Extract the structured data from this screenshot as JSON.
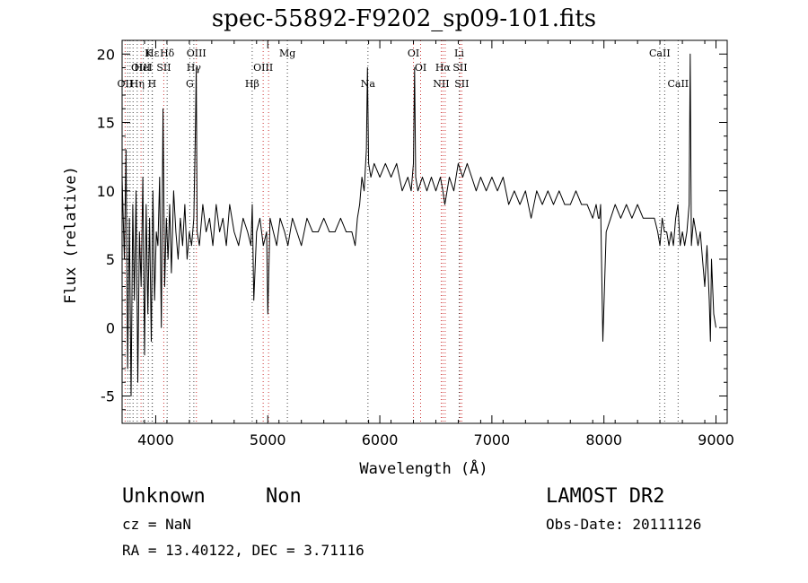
{
  "chart_data": {
    "type": "line",
    "title": "spec-55892-F9202_sp09-101.fits",
    "xlabel": "Wavelength (Å)",
    "ylabel": "Flux (relative)",
    "xlim": [
      3700,
      9100
    ],
    "ylim": [
      -7,
      21
    ],
    "xticks": [
      4000,
      5000,
      6000,
      7000,
      8000,
      9000
    ],
    "yticks": [
      -5,
      0,
      5,
      10,
      15,
      20
    ],
    "grid": false,
    "series": [
      {
        "color": "#000000",
        "x": [
          3700,
          3720,
          3735,
          3750,
          3765,
          3780,
          3795,
          3810,
          3825,
          3840,
          3855,
          3870,
          3885,
          3900,
          3915,
          3930,
          3945,
          3960,
          3975,
          3990,
          4005,
          4020,
          4035,
          4050,
          4065,
          4080,
          4095,
          4110,
          4125,
          4140,
          4160,
          4180,
          4200,
          4220,
          4240,
          4260,
          4280,
          4300,
          4320,
          4340,
          4355,
          4362,
          4370,
          4390,
          4420,
          4450,
          4480,
          4510,
          4540,
          4570,
          4600,
          4630,
          4660,
          4700,
          4740,
          4780,
          4820,
          4850,
          4862,
          4875,
          4900,
          4930,
          4960,
          4990,
          5000,
          5020,
          5050,
          5080,
          5110,
          5150,
          5180,
          5220,
          5260,
          5300,
          5350,
          5400,
          5450,
          5500,
          5550,
          5600,
          5650,
          5700,
          5750,
          5780,
          5800,
          5820,
          5840,
          5860,
          5880,
          5890,
          5900,
          5920,
          5950,
          6000,
          6050,
          6100,
          6150,
          6200,
          6250,
          6280,
          6300,
          6310,
          6320,
          6340,
          6380,
          6420,
          6460,
          6500,
          6540,
          6563,
          6580,
          6620,
          6660,
          6700,
          6740,
          6780,
          6820,
          6860,
          6900,
          6950,
          7000,
          7050,
          7100,
          7150,
          7200,
          7250,
          7300,
          7350,
          7400,
          7450,
          7500,
          7550,
          7600,
          7650,
          7700,
          7750,
          7800,
          7850,
          7900,
          7930,
          7950,
          7960,
          7970,
          7990,
          8020,
          8060,
          8100,
          8150,
          8200,
          8250,
          8300,
          8350,
          8400,
          8430,
          8450,
          8480,
          8500,
          8520,
          8540,
          8560,
          8580,
          8600,
          8620,
          8640,
          8660,
          8680,
          8700,
          8720,
          8740,
          8760,
          8770,
          8780,
          8800,
          8820,
          8840,
          8860,
          8880,
          8900,
          8920,
          8940,
          8950,
          8960,
          8980,
          9000
        ],
        "y": [
          11,
          5,
          13,
          -3,
          8,
          -5,
          9,
          2,
          10,
          -4,
          7,
          3,
          11,
          -2,
          9,
          1,
          8,
          -1,
          10,
          2,
          7,
          6,
          11,
          0,
          16,
          3,
          8,
          5,
          9,
          4,
          10,
          7,
          5,
          8,
          6,
          9,
          5,
          7,
          6,
          8,
          15,
          19,
          7,
          6,
          9,
          7,
          8,
          6,
          9,
          7,
          8,
          6,
          9,
          7,
          6,
          8,
          7,
          6,
          9,
          2,
          7,
          8,
          6,
          7,
          1,
          8,
          7,
          6,
          8,
          7,
          6,
          8,
          7,
          6,
          8,
          7,
          7,
          8,
          7,
          7,
          8,
          7,
          7,
          6,
          8,
          9,
          11,
          10,
          13,
          19,
          12,
          11,
          12,
          11,
          12,
          11,
          12,
          10,
          11,
          10,
          12,
          19,
          11,
          10,
          11,
          10,
          11,
          10,
          11,
          10,
          9,
          11,
          10,
          12,
          11,
          12,
          11,
          10,
          11,
          10,
          11,
          10,
          11,
          9,
          10,
          9,
          10,
          8,
          10,
          9,
          10,
          9,
          10,
          9,
          9,
          10,
          9,
          9,
          8,
          9,
          8,
          8,
          9,
          -1,
          7,
          8,
          9,
          8,
          9,
          8,
          9,
          8,
          8,
          8,
          8,
          7,
          6,
          8,
          7,
          7,
          6,
          7,
          6,
          8,
          9,
          6,
          7,
          6,
          7,
          9,
          20,
          6,
          8,
          7,
          6,
          7,
          5,
          3,
          6,
          2,
          -1,
          5,
          1,
          0
        ]
      }
    ],
    "lines": [
      {
        "wavelength": 3727,
        "kind": "emission",
        "labels": [
          "OII"
        ],
        "row": 3
      },
      {
        "wavelength": 3750,
        "kind": "absorption",
        "labels": [],
        "row": 0
      },
      {
        "wavelength": 3771,
        "kind": "absorption",
        "labels": [],
        "row": 0
      },
      {
        "wavelength": 3798,
        "kind": "absorption",
        "labels": [],
        "row": 0
      },
      {
        "wavelength": 3835,
        "kind": "absorption",
        "labels": [
          "Hη"
        ],
        "row": 3
      },
      {
        "wavelength": 3869,
        "kind": "emission",
        "labels": [
          "OIII"
        ],
        "row": 2
      },
      {
        "wavelength": 3889,
        "kind": "absorption",
        "labels": [
          "HeI"
        ],
        "row": 2
      },
      {
        "wavelength": 3934,
        "kind": "absorption",
        "labels": [
          "K"
        ],
        "row": 1
      },
      {
        "wavelength": 3968,
        "kind": "absorption",
        "labels": [
          "H"
        ],
        "row": 3
      },
      {
        "wavelength": 3970,
        "kind": "absorption",
        "labels": [
          "Hε"
        ],
        "row": 1
      },
      {
        "wavelength": 4072,
        "kind": "emission",
        "labels": [
          "SII"
        ],
        "row": 2
      },
      {
        "wavelength": 4102,
        "kind": "absorption",
        "labels": [
          "Hδ"
        ],
        "row": 1
      },
      {
        "wavelength": 4304,
        "kind": "absorption",
        "labels": [
          "G"
        ],
        "row": 3
      },
      {
        "wavelength": 4340,
        "kind": "absorption",
        "labels": [
          "Hγ"
        ],
        "row": 2
      },
      {
        "wavelength": 4363,
        "kind": "emission",
        "labels": [
          "OIII"
        ],
        "row": 1
      },
      {
        "wavelength": 4861,
        "kind": "absorption",
        "labels": [
          "Hβ"
        ],
        "row": 3
      },
      {
        "wavelength": 4959,
        "kind": "emission",
        "labels": [
          "OIII"
        ],
        "row": 2
      },
      {
        "wavelength": 5007,
        "kind": "emission",
        "labels": [],
        "row": 0
      },
      {
        "wavelength": 5175,
        "kind": "absorption",
        "labels": [
          "Mg"
        ],
        "row": 1
      },
      {
        "wavelength": 5894,
        "kind": "absorption",
        "labels": [
          "Na"
        ],
        "row": 3
      },
      {
        "wavelength": 6300,
        "kind": "emission",
        "labels": [
          "OI"
        ],
        "row": 1
      },
      {
        "wavelength": 6364,
        "kind": "emission",
        "labels": [
          "OI"
        ],
        "row": 2
      },
      {
        "wavelength": 6548,
        "kind": "emission",
        "labels": [
          "NII"
        ],
        "row": 3
      },
      {
        "wavelength": 6563,
        "kind": "emission",
        "labels": [
          "Hα"
        ],
        "row": 2
      },
      {
        "wavelength": 6583,
        "kind": "emission",
        "labels": [],
        "row": 0
      },
      {
        "wavelength": 6708,
        "kind": "absorption",
        "labels": [
          "Li"
        ],
        "row": 1
      },
      {
        "wavelength": 6716,
        "kind": "emission",
        "labels": [
          "SII"
        ],
        "row": 2
      },
      {
        "wavelength": 6731,
        "kind": "emission",
        "labels": [
          "SII"
        ],
        "row": 3
      },
      {
        "wavelength": 8498,
        "kind": "absorption",
        "labels": [
          "CaII"
        ],
        "row": 1
      },
      {
        "wavelength": 8542,
        "kind": "absorption",
        "labels": [],
        "row": 0
      },
      {
        "wavelength": 8662,
        "kind": "absorption",
        "labels": [
          "CaII"
        ],
        "row": 3
      }
    ]
  },
  "info": {
    "class": "Unknown",
    "subclass": "Non",
    "survey": "LAMOST DR2",
    "cz": "cz = NaN",
    "obs_date": "Obs-Date: 20111126",
    "coords": "RA =  13.40122, DEC =   3.71116"
  },
  "colors": {
    "spectrum": "#000000",
    "emission_line": "#cc3333",
    "absorption_line": "#444444"
  }
}
